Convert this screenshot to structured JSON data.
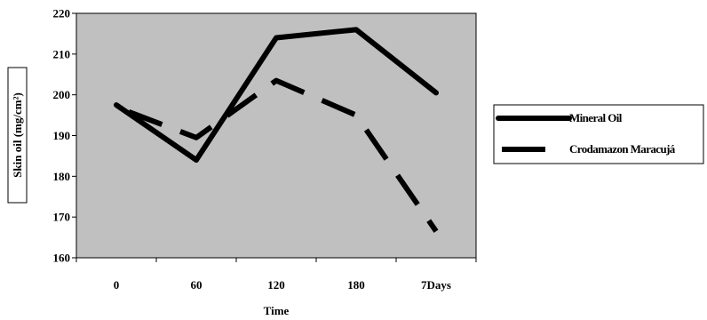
{
  "chart_data": {
    "type": "line",
    "title": "",
    "xlabel": "Time",
    "ylabel": "Skin oil (mg/cm²)",
    "categories": [
      "0",
      "60",
      "120",
      "180",
      "7Days"
    ],
    "ylim": [
      160,
      220
    ],
    "yticks": [
      160,
      170,
      180,
      190,
      200,
      210,
      220
    ],
    "plot_background": "#c0c0c0",
    "grid": false,
    "legend_position": "right",
    "series": [
      {
        "name": "Mineral Oil",
        "values": [
          197.5,
          184,
          214,
          216,
          200.5
        ],
        "line_style": "solid",
        "color": "#000000"
      },
      {
        "name": "Crodamazon Maracujá",
        "values": [
          197,
          189.5,
          203.5,
          195,
          166.5
        ],
        "line_style": "dashed",
        "color": "#000000"
      }
    ]
  }
}
